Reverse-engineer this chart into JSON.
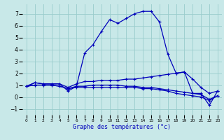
{
  "xlabel": "Graphe des températures (°c)",
  "background_color": "#c8e8e8",
  "grid_color": "#99cccc",
  "line_color": "#0000bb",
  "hours": [
    0,
    1,
    2,
    3,
    4,
    5,
    6,
    7,
    8,
    9,
    10,
    11,
    12,
    13,
    14,
    15,
    16,
    17,
    18,
    19,
    20,
    21,
    22,
    23
  ],
  "curve1": [
    0.9,
    1.2,
    1.1,
    1.1,
    1.1,
    0.5,
    0.9,
    3.7,
    4.4,
    5.5,
    6.5,
    6.2,
    6.6,
    7.0,
    7.2,
    7.2,
    6.3,
    3.6,
    2.0,
    2.1,
    0.3,
    0.3,
    -0.7,
    0.5
  ],
  "curve2": [
    0.9,
    1.2,
    1.1,
    1.1,
    1.1,
    0.8,
    1.1,
    1.3,
    1.3,
    1.4,
    1.4,
    1.4,
    1.5,
    1.5,
    1.6,
    1.7,
    1.8,
    1.9,
    2.0,
    2.1,
    1.5,
    0.8,
    0.3,
    0.5
  ],
  "curve3": [
    0.9,
    1.0,
    1.0,
    1.0,
    0.9,
    0.7,
    0.9,
    0.9,
    1.0,
    1.0,
    1.0,
    1.0,
    0.9,
    0.9,
    0.8,
    0.8,
    0.7,
    0.6,
    0.5,
    0.4,
    0.3,
    0.2,
    -0.2,
    0.1
  ],
  "curve4": [
    0.9,
    1.0,
    1.0,
    1.0,
    0.9,
    0.7,
    0.8,
    0.8,
    0.8,
    0.8,
    0.8,
    0.8,
    0.8,
    0.8,
    0.7,
    0.7,
    0.6,
    0.5,
    0.3,
    0.2,
    0.1,
    0.0,
    -0.3,
    0.1
  ],
  "ylim": [
    -1.5,
    7.8
  ],
  "xlim": [
    -0.5,
    23.5
  ],
  "yticks": [
    -1,
    0,
    1,
    2,
    3,
    4,
    5,
    6,
    7
  ],
  "xticks": [
    0,
    1,
    2,
    3,
    4,
    5,
    6,
    7,
    8,
    9,
    10,
    11,
    12,
    13,
    14,
    15,
    16,
    17,
    18,
    19,
    20,
    21,
    22,
    23
  ]
}
